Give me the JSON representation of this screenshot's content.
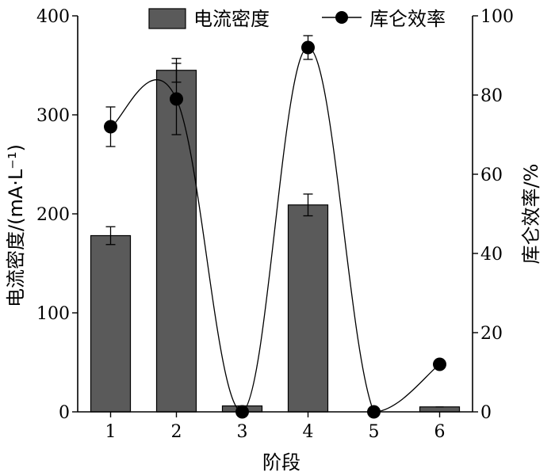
{
  "chart_data": {
    "type": "bar",
    "categories": [
      "1",
      "2",
      "3",
      "4",
      "5",
      "6"
    ],
    "xlabel": "阶段",
    "ylabel": "电流密度/(mA·L⁻¹)",
    "y2label": "库仑效率/%",
    "ylim": [
      0,
      400
    ],
    "y2lim": [
      0,
      100
    ],
    "yticks": [
      "0",
      "100",
      "200",
      "300",
      "400"
    ],
    "y2ticks": [
      "0",
      "20",
      "40",
      "60",
      "80",
      "100"
    ],
    "legend_position": "top",
    "series": [
      {
        "name": "电流密度",
        "type": "bar",
        "axis": "left",
        "color": "#5a5a5a",
        "values": [
          178,
          345,
          6,
          209,
          0,
          5
        ],
        "errors": [
          9,
          12,
          0,
          11,
          0,
          0
        ]
      },
      {
        "name": "库仑效率",
        "type": "line",
        "axis": "right",
        "color": "#000000",
        "values": [
          72,
          79,
          0,
          92,
          0,
          12
        ],
        "errors": [
          5,
          9,
          0,
          3,
          0,
          0
        ]
      }
    ]
  }
}
